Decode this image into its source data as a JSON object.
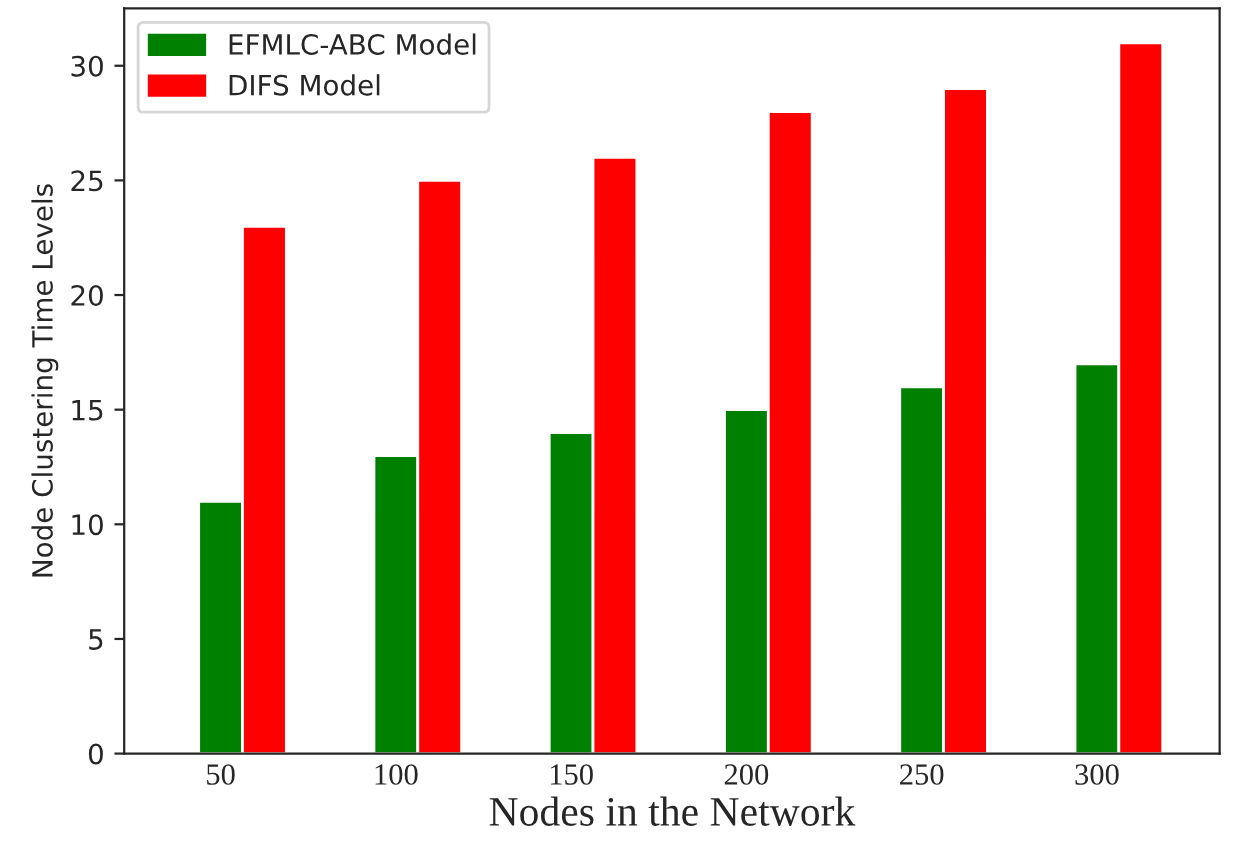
{
  "chart_data": {
    "type": "bar",
    "xlabel": "Nodes in the Network",
    "ylabel": "Node Clustering Time Levels",
    "categories": [
      "50",
      "100",
      "150",
      "200",
      "250",
      "300"
    ],
    "series": [
      {
        "name": "EFMLC-ABC Model",
        "color": "#008000",
        "values": [
          11,
          13,
          14,
          15,
          16,
          17
        ]
      },
      {
        "name": "DIFS Model",
        "color": "#ff0000",
        "values": [
          23,
          25,
          26,
          28,
          29,
          31
        ]
      }
    ],
    "ylim": [
      0,
      32.5
    ],
    "yticks": [
      0,
      5,
      10,
      15,
      20,
      25,
      30
    ],
    "grid": false,
    "legend": "top left"
  }
}
